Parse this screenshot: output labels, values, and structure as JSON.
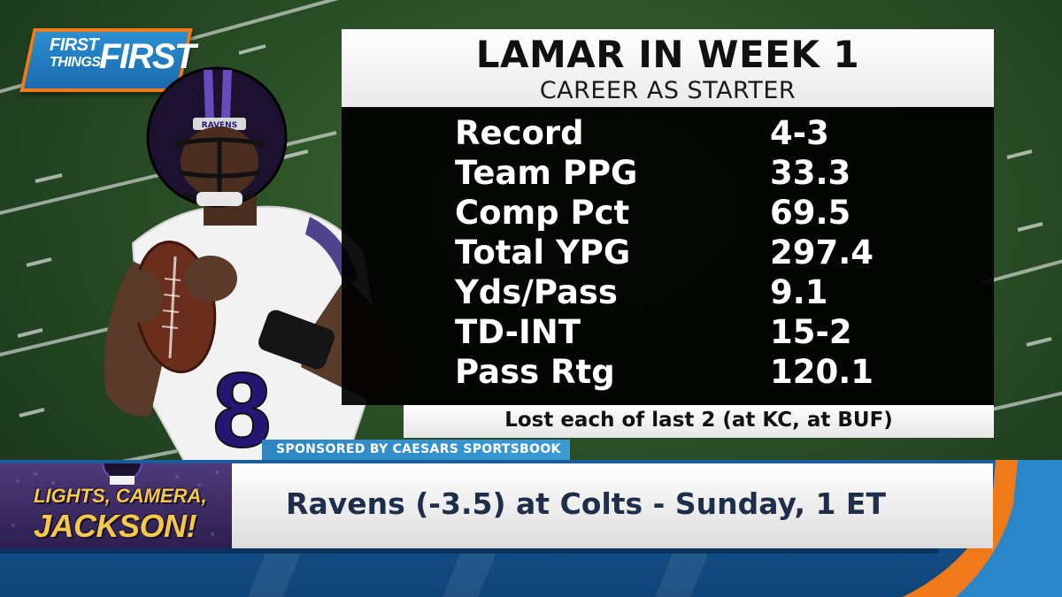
{
  "show_logo": {
    "word1": "FIRST",
    "word2": "THINGS",
    "word3": "FIRST"
  },
  "panel": {
    "title": "LAMAR IN WEEK 1",
    "subtitle": "CAREER AS STARTER",
    "stats": [
      {
        "label": "Record",
        "value": "4-3"
      },
      {
        "label": "Team PPG",
        "value": "33.3"
      },
      {
        "label": "Comp Pct",
        "value": "69.5"
      },
      {
        "label": "Total YPG",
        "value": "297.4"
      },
      {
        "label": "Yds/Pass",
        "value": "9.1"
      },
      {
        "label": "TD-INT",
        "value": "15-2"
      },
      {
        "label": "Pass Rtg",
        "value": "120.1"
      }
    ],
    "note": "Lost each of last 2 (at KC, at BUF)"
  },
  "sponsor": {
    "text": "SPONSORED BY CAESARS SPORTSBOOK"
  },
  "lower_third": {
    "segment_line1": "LIGHTS, CAMERA,",
    "segment_line2": "JACKSON!",
    "headline": "Ravens (-3.5) at Colts - Sunday, 1 ET"
  },
  "player": {
    "jersey_number": "8",
    "helmet_label": "RAVENS"
  },
  "colors": {
    "ravens_purple": "#241773",
    "field_green": "#2a4f26",
    "accent_orange": "#f07a1a",
    "brand_blue": "#1a6aad"
  }
}
